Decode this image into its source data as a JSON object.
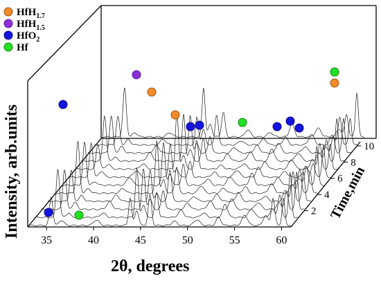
{
  "chart_data": {
    "type": "line",
    "subtype": "waterfall-3d",
    "xlabel": "2θ, degrees",
    "ylabel": "Intensity, arb.units",
    "zlabel": "Time,min",
    "xlim": [
      33,
      61
    ],
    "x_ticks": [
      35,
      40,
      45,
      50,
      55,
      60
    ],
    "z_ticks": [
      2,
      4,
      6,
      8,
      10
    ],
    "series_count": 12,
    "legend": [
      {
        "label": "HfH",
        "sub": "1.7",
        "subpos": "low",
        "color": "#f28c28",
        "stroke": "#a0501a"
      },
      {
        "label": "HfH",
        "sub": "1.5",
        "subpos": "low",
        "color": "#8e2fd8",
        "stroke": "#5a1a99"
      },
      {
        "label": "HfO",
        "sub": "2",
        "subpos": "low",
        "color": "#1414e0",
        "stroke": "#0a0a80"
      },
      {
        "label": "Hf",
        "sub": "",
        "subpos": "",
        "color": "#22e022",
        "stroke": "#118811"
      }
    ],
    "legend_position": "top-left",
    "grid": false
  }
}
